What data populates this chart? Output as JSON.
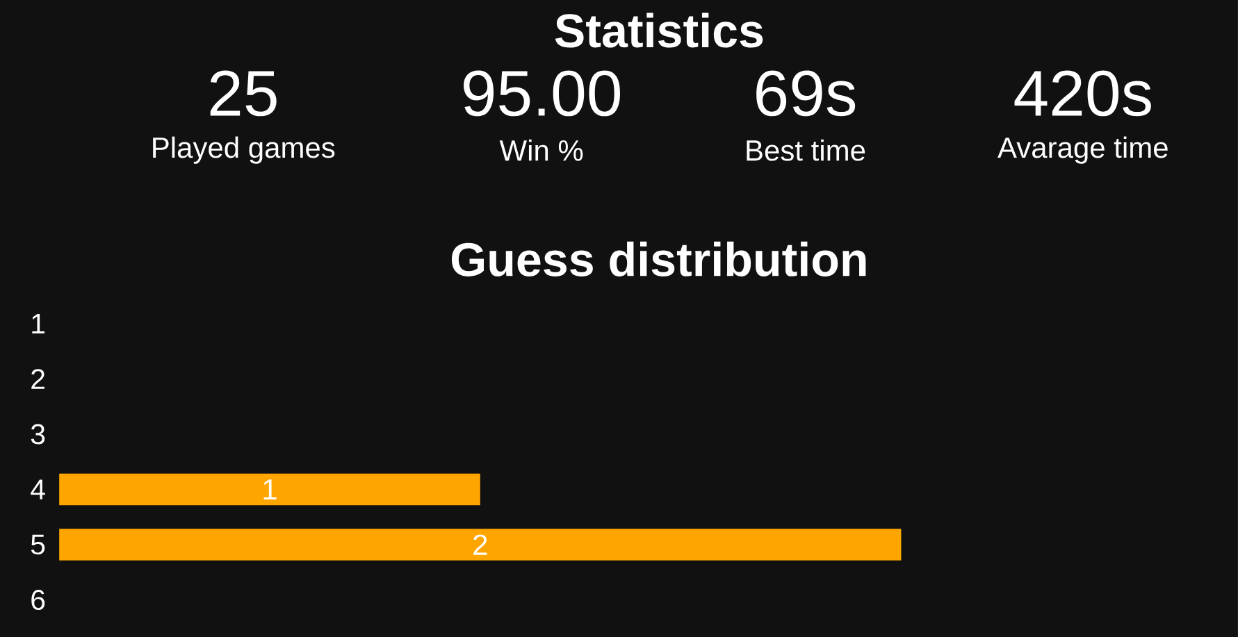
{
  "chart_data": [
    {
      "type": "other",
      "title": "Statistics",
      "annotations": [
        "25",
        "Played games",
        "95.00",
        "Win %",
        "69s",
        "Best time",
        "420s",
        "Avarage time"
      ]
    },
    {
      "type": "bar",
      "orientation": "horizontal",
      "title": "Guess distribution",
      "categories": [
        "1",
        "2",
        "3",
        "4",
        "5",
        "6"
      ],
      "values": [
        0,
        0,
        0,
        1,
        2,
        0
      ],
      "color": "#ffa500",
      "value_labels": [
        null,
        null,
        null,
        "1",
        "2",
        null
      ],
      "xlim": [
        0,
        2.8
      ],
      "tick_labels": "y"
    }
  ]
}
